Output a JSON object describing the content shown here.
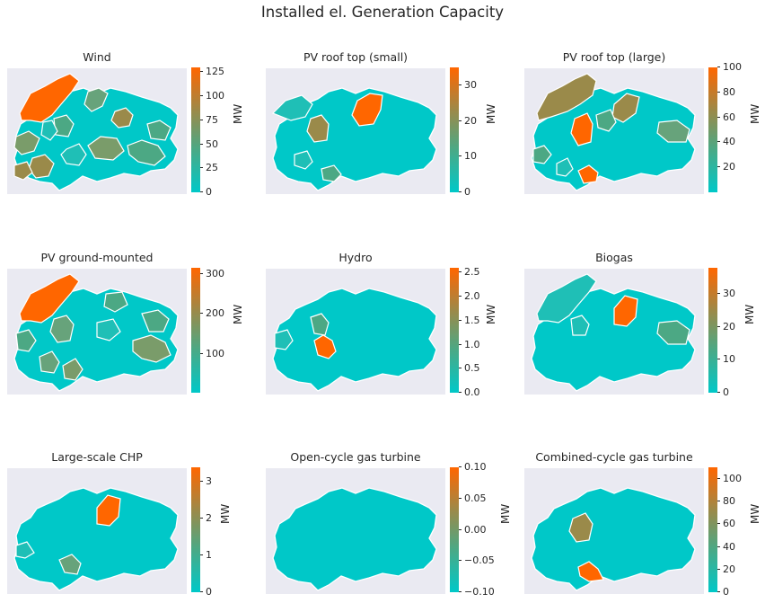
{
  "title": "Installed el. Generation Capacity",
  "colorbar_unit": "MW",
  "colormap": {
    "low": "#00c8c8",
    "mid": "#9a8a4a",
    "high": "#ff6600",
    "axes_background": "#eaeaf2",
    "region_border": "#ffffff"
  },
  "panels": [
    {
      "title": "Wind",
      "ticks": [
        "0",
        "25",
        "50",
        "75",
        "100",
        "125"
      ],
      "range": [
        0,
        130
      ]
    },
    {
      "title": "PV roof top (small)",
      "ticks": [
        "0",
        "10",
        "20",
        "30"
      ],
      "range": [
        0,
        35
      ]
    },
    {
      "title": "PV roof top (large)",
      "ticks": [
        "20",
        "40",
        "60",
        "80",
        "100"
      ],
      "range": [
        10,
        110
      ]
    },
    {
      "title": "PV ground-mounted",
      "ticks": [
        "100",
        "200",
        "300"
      ],
      "range": [
        10,
        320
      ]
    },
    {
      "title": "Hydro",
      "ticks": [
        "0.0",
        "0.5",
        "1.0",
        "1.5",
        "2.0",
        "2.5"
      ],
      "range": [
        0,
        2.6
      ]
    },
    {
      "title": "Biogas",
      "ticks": [
        "0",
        "10",
        "20",
        "30"
      ],
      "range": [
        0,
        38
      ]
    },
    {
      "title": "Large-scale CHP",
      "ticks": [
        "0",
        "1",
        "2",
        "3"
      ],
      "range": [
        0,
        3.4
      ]
    },
    {
      "title": "Open-cycle gas turbine",
      "ticks": [
        "−0.10",
        "−0.05",
        "0.00",
        "0.05",
        "0.10"
      ],
      "range": [
        -0.1,
        0.1
      ]
    },
    {
      "title": "Combined-cycle gas turbine",
      "ticks": [
        "0",
        "20",
        "40",
        "60",
        "80",
        "100"
      ],
      "range": [
        0,
        110
      ]
    }
  ]
}
